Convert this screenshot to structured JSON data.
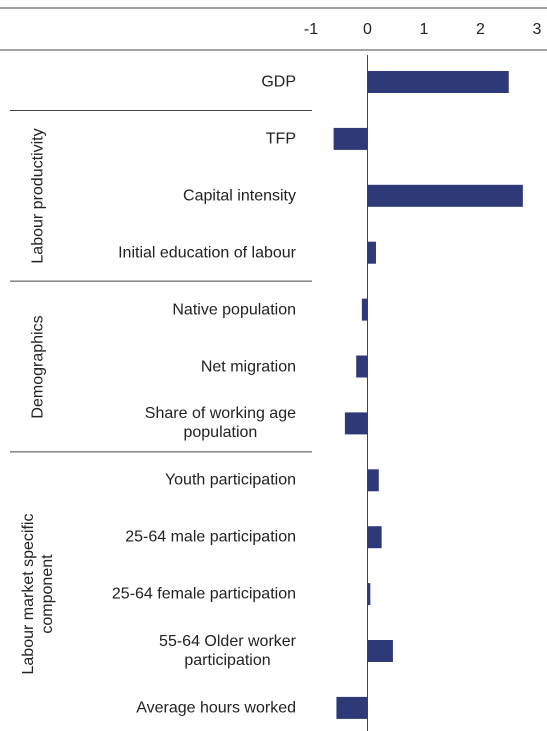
{
  "chart_data": {
    "type": "hbar",
    "categories": [
      "GDP",
      "TFP",
      "Capital intensity",
      "Initial education of labour",
      "Native population",
      "Net migration",
      "Share of working age\npopulation",
      "Youth participation",
      "25-64 male participation",
      "25-64 female participation",
      "55-64 Older worker\nparticipation",
      "Average hours worked"
    ],
    "values": [
      2.5,
      -0.6,
      2.75,
      0.15,
      -0.1,
      -0.2,
      -0.4,
      0.2,
      0.25,
      0.05,
      0.45,
      -0.55
    ],
    "color": "#2e3a78",
    "groups": [
      {
        "label": "Labour productivity",
        "start": 1,
        "end": 3
      },
      {
        "label": "Demographics",
        "start": 4,
        "end": 6
      },
      {
        "label": "Labour market specific\ncomponent",
        "start": 7,
        "end": 11
      }
    ],
    "xlim": [
      -1,
      3
    ],
    "xticks": [
      -1,
      0,
      1,
      2,
      3
    ],
    "grid": false
  }
}
